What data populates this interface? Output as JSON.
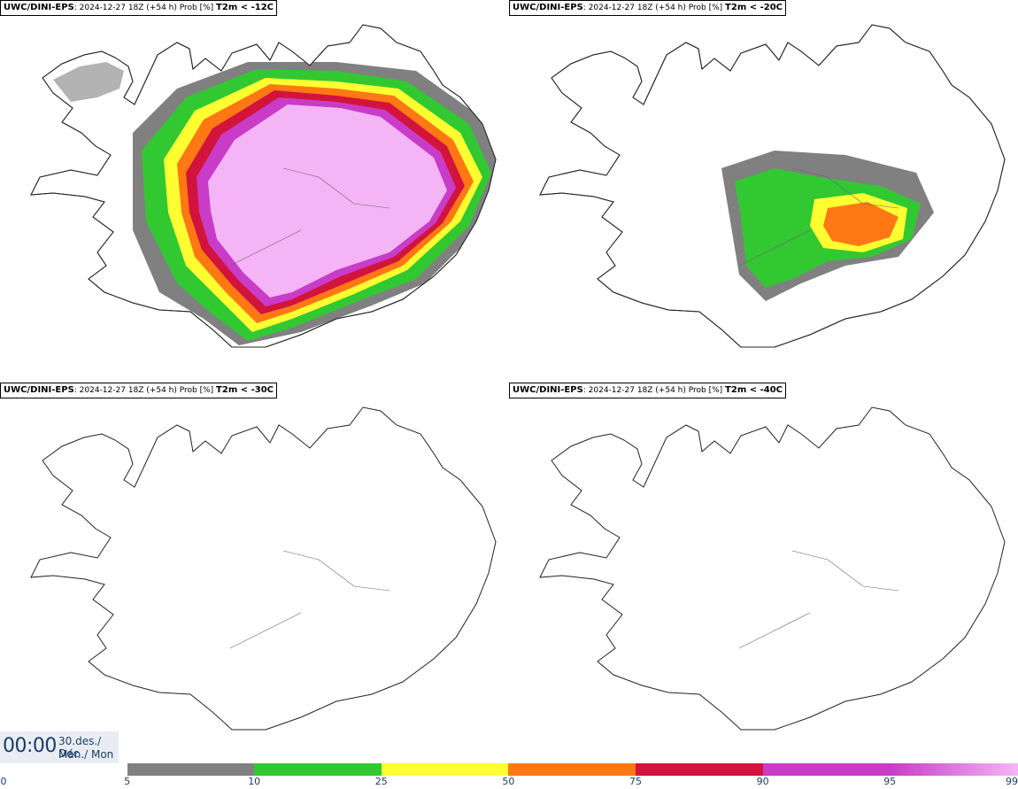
{
  "panels": [
    {
      "model": "UWC/DINI-EPS",
      "run": ": 2024-12-27 18Z (+54 h) Prob [%]",
      "threshold": "T2m < -12C"
    },
    {
      "model": "UWC/DINI-EPS",
      "run": ": 2024-12-27 18Z (+54 h) Prob [%]",
      "threshold": "T2m < -20C"
    },
    {
      "model": "UWC/DINI-EPS",
      "run": ": 2024-12-27 18Z (+54 h) Prob [%]",
      "threshold": "T2m < -30C"
    },
    {
      "model": "UWC/DINI-EPS",
      "run": ": 2024-12-27 18Z (+54 h) Prob [%]",
      "threshold": "T2m < -40C"
    }
  ],
  "clock": {
    "time": "00:00",
    "date": "30.des./ Dec",
    "weekday": "Mán./ Mon"
  },
  "colorbar": {
    "ticks": [
      "0",
      "5",
      "10",
      "25",
      "50",
      "75",
      "90",
      "95",
      "99"
    ],
    "colors": [
      "#ffffff",
      "#b4b4b4",
      "#808080",
      "#32c832",
      "#ffff32",
      "#ff7814",
      "#d2143c",
      "#c83cc8",
      "#f5b4f5"
    ]
  }
}
